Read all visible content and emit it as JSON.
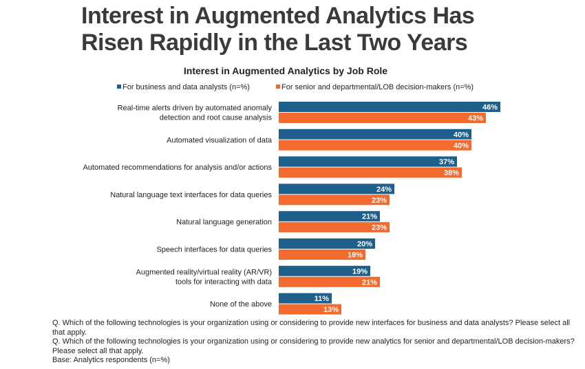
{
  "headline": {
    "line1": "Interest in Augmented Analytics Has",
    "line2": "Risen Rapidly in the Last Two Years"
  },
  "footnotes": {
    "q1": "Q. Which of the following technologies is your organization using or considering to provide new interfaces for business and data analysts? Please select all that apply.",
    "q2": "Q. Which of the following technologies is your organization using or considering to provide new analytics for senior and departmental/LOB decision-makers? Please select all that apply.",
    "base": "Base: Analytics respondents (n=%)"
  },
  "chart_data": {
    "type": "bar",
    "orientation": "horizontal",
    "title": "Interest in Augmented Analytics by Job Role",
    "legend_position": "top",
    "value_suffix": "%",
    "categories": [
      [
        "Real-time alerts driven by automated anomaly",
        "detection and root cause analysis"
      ],
      [
        "Automated visualization of data"
      ],
      [
        "Automated recommendations for analysis and/or actions"
      ],
      [
        "Natural language text interfaces for data queries"
      ],
      [
        "Natural language generation"
      ],
      [
        "Speech interfaces for data queries"
      ],
      [
        "Augmented reality/virtual reality (AR/VR)",
        "tools for interacting with data"
      ],
      [
        "None of the above"
      ]
    ],
    "series": [
      {
        "name": "For business and data analysts (n=%)",
        "color": "#1f5f8b",
        "values": [
          46,
          40,
          37,
          24,
          21,
          20,
          19,
          11
        ]
      },
      {
        "name": "For senior and departmental/LOB decision-makers (n=%)",
        "color": "#f26a2e",
        "values": [
          43,
          40,
          38,
          23,
          23,
          18,
          21,
          13
        ]
      }
    ]
  }
}
